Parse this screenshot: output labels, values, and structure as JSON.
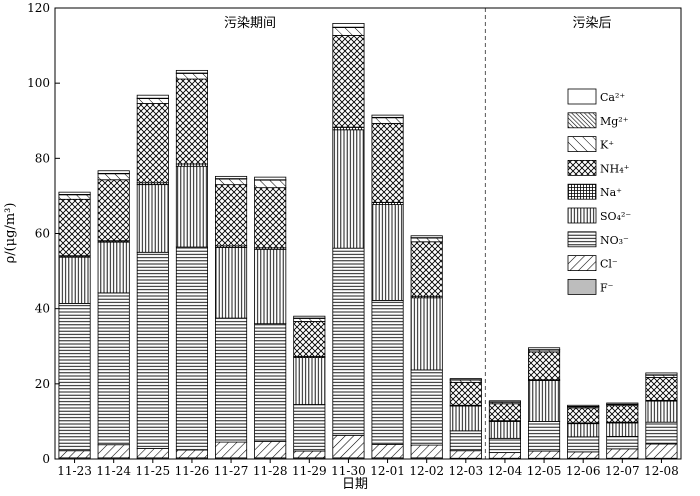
{
  "chart_data": {
    "type": "bar",
    "stacked": true,
    "xlabel": "日期",
    "ylabel": "ρ/(μg/m³)",
    "ylim": [
      0,
      120
    ],
    "yticks": [
      0,
      20,
      40,
      60,
      80,
      100,
      120
    ],
    "grid": false,
    "legend_position": "right",
    "categories": [
      "11-23",
      "11-24",
      "11-25",
      "11-26",
      "11-27",
      "11-28",
      "11-29",
      "11-30",
      "12-01",
      "12-02",
      "12-03",
      "12-04",
      "12-05",
      "12-06",
      "12-07",
      "12-08"
    ],
    "annotations": [
      {
        "text": "污染期间",
        "period": "before-divider"
      },
      {
        "text": "污染后",
        "period": "after-divider"
      }
    ],
    "divider_between": [
      "12-03",
      "12-04"
    ],
    "series": [
      {
        "name": "F⁻",
        "pattern": "gray",
        "values": [
          0.3,
          0.3,
          0.3,
          0.3,
          0.3,
          0.3,
          0.3,
          0.3,
          0.3,
          0.3,
          0.2,
          0.2,
          0.2,
          0.2,
          0.2,
          0.2
        ]
      },
      {
        "name": "Cl⁻",
        "pattern": "diag-up",
        "values": [
          1.9,
          3.5,
          2.5,
          2.1,
          4.2,
          4.4,
          1.8,
          6.0,
          3.6,
          3.4,
          2.0,
          1.5,
          1.9,
          1.7,
          2.5,
          3.8
        ]
      },
      {
        "name": "NO₃⁻",
        "pattern": "hlines",
        "values": [
          39.2,
          40.4,
          52.2,
          54.0,
          33.0,
          31.3,
          12.4,
          49.8,
          38.3,
          20.0,
          5.3,
          3.8,
          7.9,
          4.0,
          3.3,
          5.8
        ]
      },
      {
        "name": "SO₄²⁻",
        "pattern": "vlines",
        "values": [
          12.3,
          13.5,
          18.0,
          21.5,
          18.8,
          19.8,
          12.5,
          31.5,
          25.5,
          19.2,
          6.6,
          4.5,
          10.9,
          3.5,
          3.6,
          5.6
        ]
      },
      {
        "name": "Na⁺",
        "pattern": "grid",
        "values": [
          0.4,
          0.4,
          0.5,
          0.6,
          0.4,
          0.4,
          0.3,
          0.7,
          0.6,
          0.4,
          0.2,
          0.2,
          0.2,
          0.2,
          0.2,
          0.2
        ]
      },
      {
        "name": "NH₄⁺",
        "pattern": "crosshatch",
        "values": [
          15.0,
          16.2,
          21.1,
          22.6,
          16.3,
          16.0,
          9.3,
          24.4,
          21.0,
          14.5,
          6.1,
          4.5,
          7.4,
          4.0,
          4.4,
          6.1
        ]
      },
      {
        "name": "K⁺",
        "pattern": "diag-down-sparse",
        "values": [
          1.2,
          1.6,
          1.3,
          1.5,
          1.5,
          2.0,
          0.8,
          2.1,
          1.5,
          1.0,
          0.6,
          0.4,
          0.5,
          0.3,
          0.3,
          0.6
        ]
      },
      {
        "name": "Mg²⁺",
        "pattern": "diag-down-dense",
        "values": [
          0.1,
          0.1,
          0.1,
          0.1,
          0.1,
          0.1,
          0.1,
          0.1,
          0.1,
          0.1,
          0.1,
          0.1,
          0.1,
          0.1,
          0.1,
          0.1
        ]
      },
      {
        "name": "Ca²⁺",
        "pattern": "white",
        "values": [
          0.6,
          0.7,
          0.8,
          0.7,
          0.6,
          0.7,
          0.5,
          1.0,
          0.6,
          0.5,
          0.3,
          0.3,
          0.5,
          0.3,
          0.3,
          0.5
        ]
      }
    ]
  }
}
